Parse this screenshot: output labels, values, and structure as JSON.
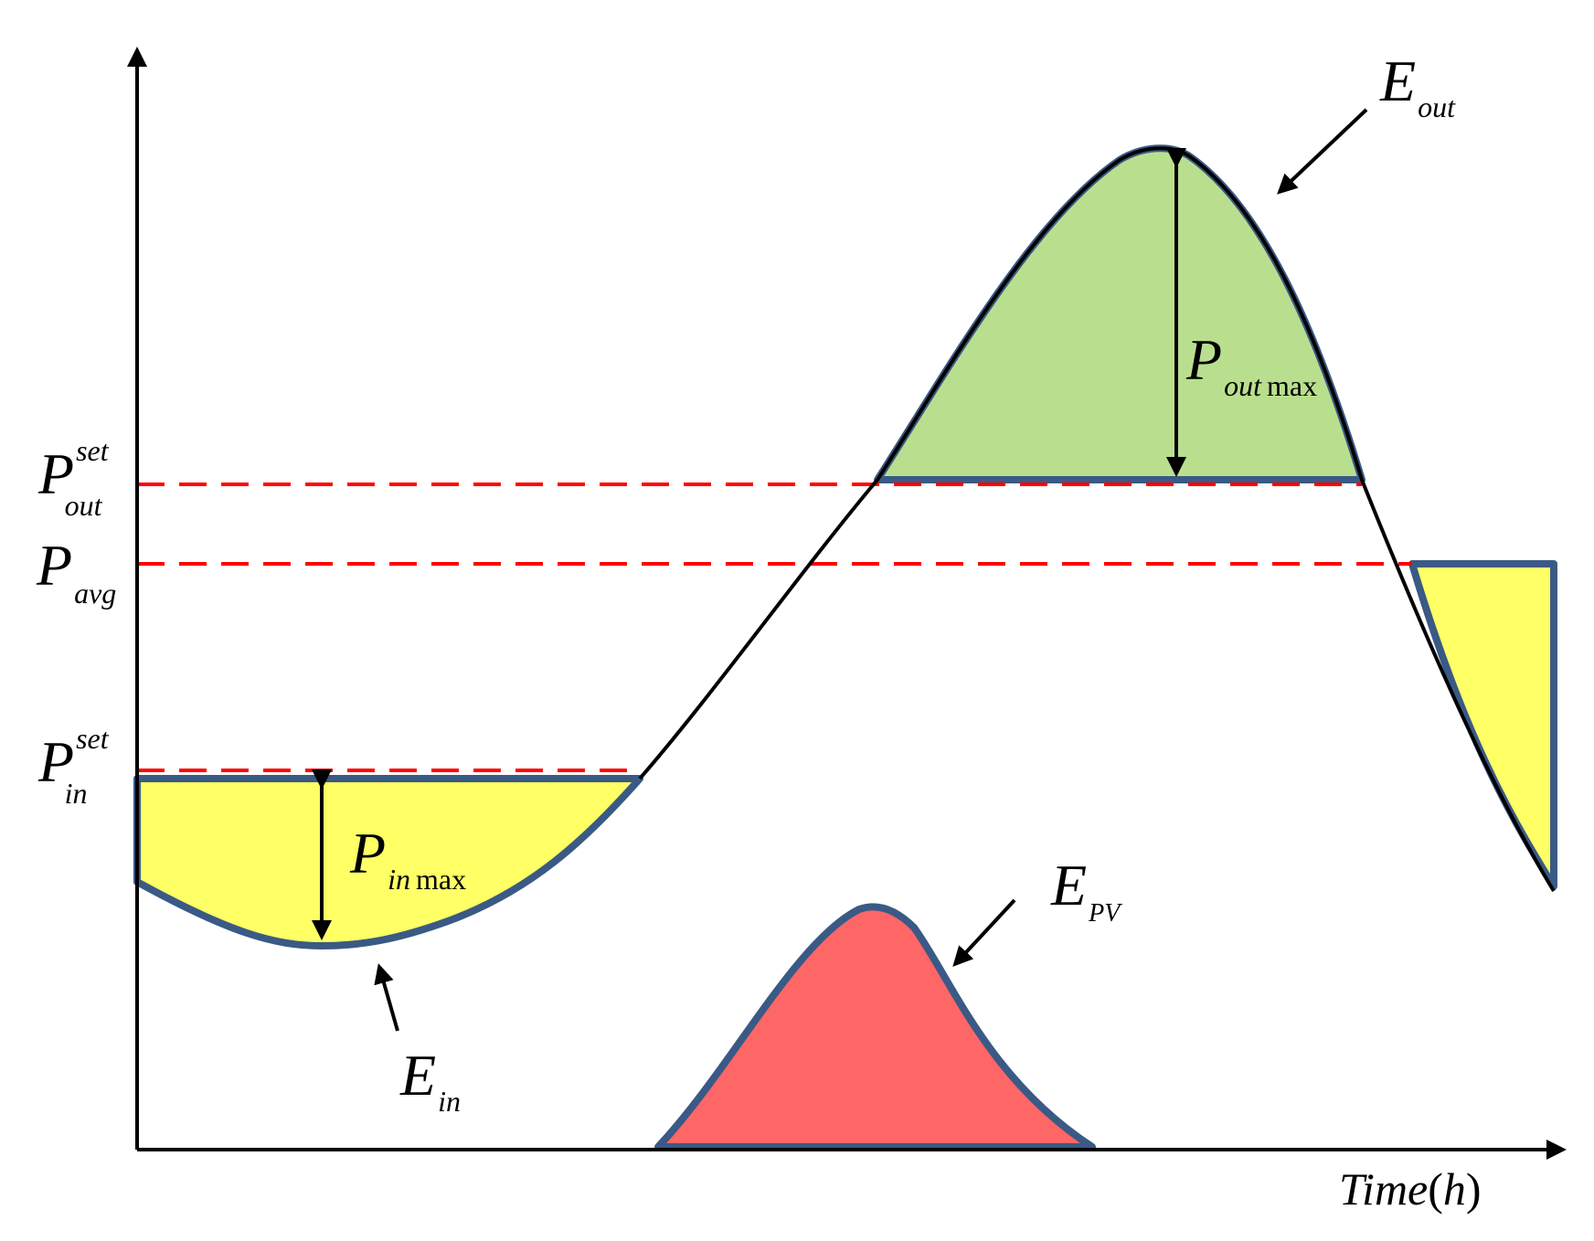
{
  "diagram": {
    "labels": {
      "p_out_set": {
        "base": "P",
        "sup": "set",
        "sub": "out"
      },
      "p_avg": {
        "base": "P",
        "sub": "avg"
      },
      "p_in_set": {
        "base": "P",
        "sup": "set",
        "sub": "in"
      },
      "p_out_max": {
        "base": "P",
        "sub": "out",
        "suffix": "max"
      },
      "p_in_max": {
        "base": "P",
        "sub": "in",
        "suffix": "max"
      },
      "e_out": {
        "base": "E",
        "sub": "out"
      },
      "e_in": {
        "base": "E",
        "sub": "in"
      },
      "e_pv": {
        "base": "E",
        "sub": "PV"
      },
      "x_axis": {
        "main": "Time",
        "open": "(",
        "unit": "h",
        "close": ")"
      }
    },
    "colors": {
      "curve": "#000000",
      "outline": "#3a5a85",
      "dashed_reference": "#ff0000",
      "e_out_fill": "#b9df8e",
      "e_in_fill": "#ffff66",
      "e_pv_fill": "#ff6666"
    }
  }
}
